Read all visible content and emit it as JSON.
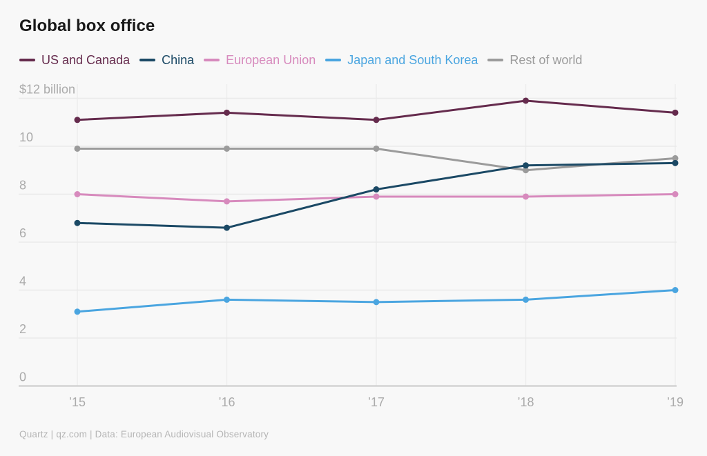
{
  "title": "Global box office",
  "footer": {
    "source": "Quartz | qz.com | Data: European Audiovisual Observatory"
  },
  "chart_data": {
    "type": "line",
    "title": "Global box office",
    "categories": [
      "’15",
      "’16",
      "’17",
      "’18",
      "’19"
    ],
    "series": [
      {
        "name": "US and Canada",
        "color": "#652b4d",
        "values": [
          11.1,
          11.4,
          11.1,
          11.9,
          11.4
        ]
      },
      {
        "name": "China",
        "color": "#1b4965",
        "values": [
          6.8,
          6.6,
          8.2,
          9.2,
          9.3
        ]
      },
      {
        "name": "European Union",
        "color": "#d78abd",
        "values": [
          8.0,
          7.7,
          7.9,
          7.9,
          8.0
        ]
      },
      {
        "name": "Japan and South Korea",
        "color": "#4aa5e0",
        "values": [
          3.1,
          3.6,
          3.5,
          3.6,
          4.0
        ]
      },
      {
        "name": "Rest of world",
        "color": "#9b9b9b",
        "values": [
          9.9,
          9.9,
          9.9,
          9.0,
          9.5
        ]
      }
    ],
    "xlabel": "",
    "ylabel": "",
    "y_top_label": "$12 billion",
    "y_ticks": [
      0,
      2,
      4,
      6,
      8,
      10
    ],
    "ylim": [
      0,
      12
    ],
    "grid": "horizontal gridlines at even values, vertical gridlines at each year",
    "legend_position": "top"
  },
  "colors": {
    "background": "#f8f8f8",
    "title_text": "#191919",
    "axis_labels": "#ababab",
    "gridline": "#eaeaea",
    "zero_axis": "#c9c9c9",
    "footer_text": "#b5b5b5"
  }
}
